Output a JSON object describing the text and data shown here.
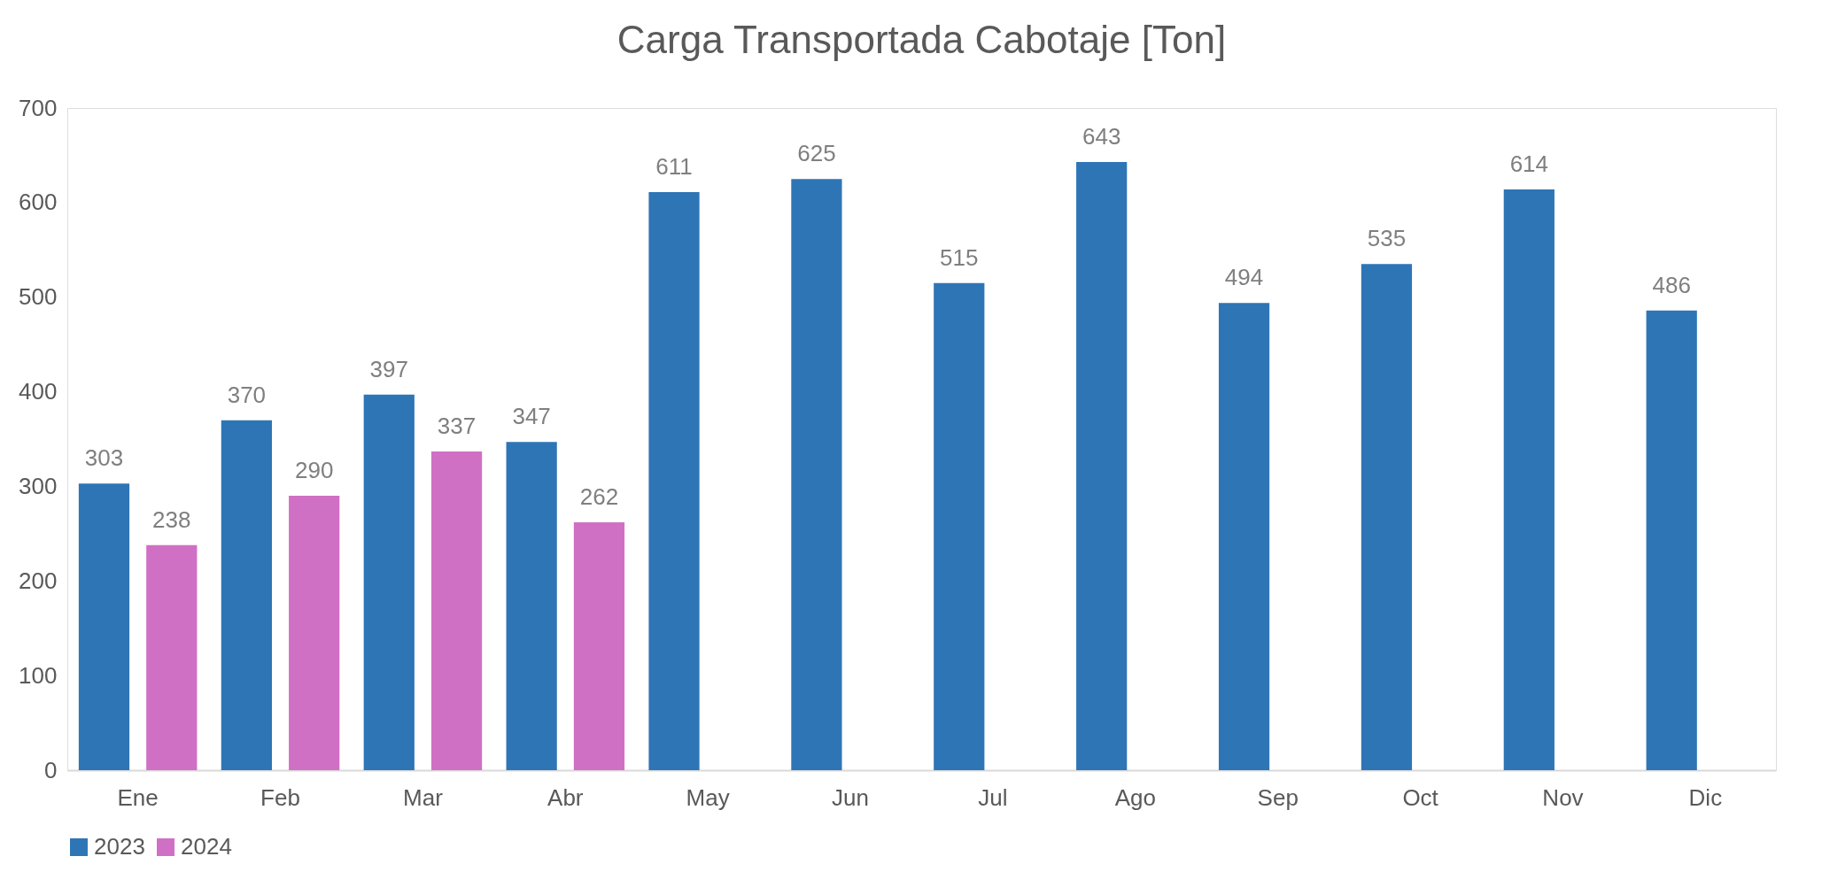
{
  "chart_data": {
    "type": "bar",
    "title": "Carga Transportada Cabotaje [Ton]",
    "categories": [
      "Ene",
      "Feb",
      "Mar",
      "Abr",
      "May",
      "Jun",
      "Jul",
      "Ago",
      "Sep",
      "Oct",
      "Nov",
      "Dic"
    ],
    "series": [
      {
        "name": "2023",
        "color": "#2e75b6",
        "values": [
          303,
          370,
          397,
          347,
          611,
          625,
          515,
          643,
          494,
          535,
          614,
          486
        ]
      },
      {
        "name": "2024",
        "color": "#d070c4",
        "values": [
          238,
          290,
          337,
          262,
          null,
          null,
          null,
          null,
          null,
          null,
          null,
          null
        ]
      }
    ],
    "ylim": [
      0,
      700
    ],
    "yticks": [
      0,
      100,
      200,
      300,
      400,
      500,
      600,
      700
    ],
    "data_labels": true,
    "grid": false,
    "legend": "bottom"
  }
}
